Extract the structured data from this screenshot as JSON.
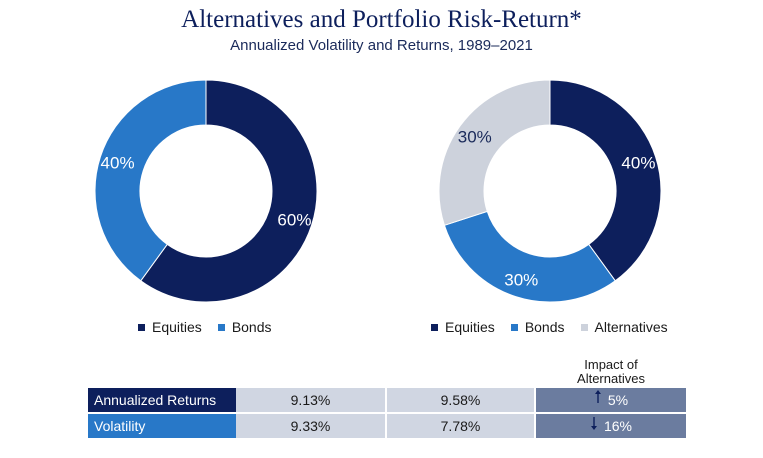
{
  "title": "Alternatives and Portfolio Risk-Return*",
  "subtitle": "Annualized Volatility and Returns, 1989–2021",
  "colors": {
    "equities": "#0d1f5c",
    "bonds": "#2878c8",
    "alternatives": "#cdd2dc",
    "impact_bg": "#6b7c9f",
    "values_bg": "#d0d6e2",
    "returns_label_bg": "#0d1f5c",
    "volatility_label_bg": "#2878c8"
  },
  "chart_data": [
    {
      "type": "pie",
      "variant": "donut",
      "slices": [
        {
          "name": "Equities",
          "value": 60,
          "label": "60%",
          "color": "#0d1f5c"
        },
        {
          "name": "Bonds",
          "value": 40,
          "label": "40%",
          "color": "#2878c8"
        }
      ],
      "legend": [
        "Equities",
        "Bonds"
      ]
    },
    {
      "type": "pie",
      "variant": "donut",
      "slices": [
        {
          "name": "Equities",
          "value": 40,
          "label": "40%",
          "color": "#0d1f5c"
        },
        {
          "name": "Bonds",
          "value": 30,
          "label": "30%",
          "color": "#2878c8"
        },
        {
          "name": "Alternatives",
          "value": 30,
          "label": "30%",
          "color": "#cdd2dc"
        }
      ],
      "legend": [
        "Equities",
        "Bonds",
        "Alternatives"
      ]
    },
    {
      "type": "table",
      "header": "Impact of Alternatives",
      "rows": [
        {
          "label": "Annualized Returns",
          "portfolio_1": "9.13%",
          "portfolio_2": "9.58%",
          "impact": "5%",
          "direction": "up"
        },
        {
          "label": "Volatility",
          "portfolio_1": "9.33%",
          "portfolio_2": "7.78%",
          "impact": "16%",
          "direction": "down"
        }
      ]
    }
  ]
}
